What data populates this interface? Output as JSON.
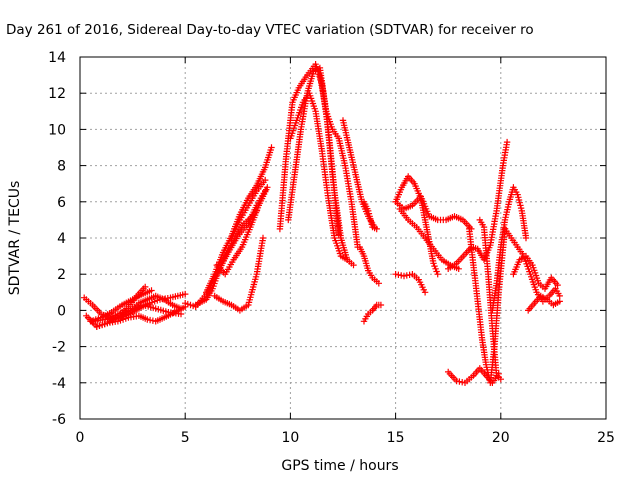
{
  "chart_data": {
    "type": "scatter",
    "title": "Day 261 of 2016, Sidereal Day-to-day VTEC variation (SDTVAR) for receiver ro",
    "xlabel": "GPS time / hours",
    "ylabel": "SDTVAR / TECUs",
    "xlim": [
      0,
      25
    ],
    "ylim": [
      -6,
      14
    ],
    "x_ticks": [
      "0",
      "5",
      "10",
      "15",
      "20",
      "25"
    ],
    "y_ticks": [
      "14",
      "12",
      "10",
      "8",
      "6",
      "4",
      "2",
      "0",
      "-2",
      "-4",
      "-6"
    ],
    "grid": true,
    "marker": "plus",
    "color": "#ff0000",
    "tracks": [
      {
        "x": [
          0.2,
          0.6,
          1.0,
          1.6,
          2.2,
          2.8,
          3.3,
          3.8,
          4.3,
          5.0
        ],
        "y": [
          0.7,
          0.3,
          -0.2,
          -0.5,
          -0.3,
          0.1,
          0.4,
          0.6,
          0.7,
          0.9
        ]
      },
      {
        "x": [
          0.3,
          0.8,
          1.3,
          1.8,
          2.3,
          2.7,
          3.1
        ],
        "y": [
          -0.3,
          -0.9,
          -0.7,
          -0.3,
          0.2,
          0.8,
          1.3
        ]
      },
      {
        "x": [
          0.5,
          1.0,
          1.5,
          2.0,
          2.5,
          3.0,
          3.4
        ],
        "y": [
          -0.6,
          -0.4,
          -0.1,
          0.3,
          0.6,
          0.9,
          1.1
        ]
      },
      {
        "x": [
          0.8,
          1.3,
          1.8,
          2.3,
          2.8,
          3.2,
          3.6,
          4.0,
          4.5,
          5.0
        ],
        "y": [
          -0.9,
          -0.7,
          -0.6,
          -0.4,
          -0.3,
          -0.5,
          -0.6,
          -0.4,
          -0.1,
          0.2
        ]
      },
      {
        "x": [
          0.6,
          1.2,
          1.8,
          2.4,
          3.0,
          3.6,
          4.2,
          4.8
        ],
        "y": [
          -0.6,
          -0.5,
          -0.2,
          0.0,
          0.3,
          0.1,
          -0.1,
          -0.2
        ]
      },
      {
        "x": [
          1.6,
          2.0,
          2.4,
          2.8,
          3.2,
          3.6,
          4.0,
          4.4,
          4.8
        ],
        "y": [
          -0.5,
          -0.3,
          0.0,
          0.4,
          0.6,
          0.8,
          0.6,
          0.3,
          0.1
        ]
      },
      {
        "x": [
          5.0,
          5.5,
          6.0,
          6.5,
          7.0,
          7.5,
          8.0,
          8.4,
          8.8
        ],
        "y": [
          0.4,
          0.2,
          0.9,
          2.0,
          3.1,
          4.1,
          4.8,
          5.8,
          6.6
        ]
      },
      {
        "x": [
          5.5,
          6.0,
          6.3,
          6.6,
          7.0,
          7.4,
          7.8,
          8.1,
          8.4
        ],
        "y": [
          0.3,
          0.6,
          1.2,
          2.2,
          3.3,
          4.1,
          4.8,
          5.1,
          5.5
        ]
      },
      {
        "x": [
          6.0,
          6.4,
          6.8,
          7.2,
          7.6,
          8.0,
          8.4,
          8.8,
          9.1
        ],
        "y": [
          1.0,
          2.0,
          3.2,
          4.1,
          5.3,
          6.2,
          6.9,
          7.9,
          9.0
        ]
      },
      {
        "x": [
          6.4,
          6.8,
          7.2,
          7.6,
          8.0,
          8.4,
          8.7
        ],
        "y": [
          0.8,
          0.5,
          0.3,
          0.0,
          0.3,
          2.0,
          4.0
        ]
      },
      {
        "x": [
          6.5,
          6.9,
          7.3,
          7.7,
          8.1,
          8.5,
          8.9
        ],
        "y": [
          2.5,
          2.0,
          2.8,
          3.5,
          4.6,
          5.8,
          6.8
        ]
      },
      {
        "x": [
          7.2,
          7.6,
          8.0,
          8.4,
          8.8
        ],
        "y": [
          4.0,
          5.0,
          5.8,
          6.6,
          7.2
        ]
      },
      {
        "x": [
          9.5,
          9.8,
          10.1,
          10.4,
          10.8,
          11.2,
          11.5,
          11.8,
          12.1,
          12.4,
          12.7
        ],
        "y": [
          4.5,
          8.5,
          11.5,
          12.3,
          13.0,
          13.6,
          12.5,
          10.0,
          6.5,
          4.0,
          2.8
        ]
      },
      {
        "x": [
          9.9,
          10.2,
          10.5,
          10.8,
          11.1,
          11.4,
          11.7,
          12.0,
          12.3
        ],
        "y": [
          5.0,
          7.5,
          10.0,
          12.0,
          13.2,
          13.4,
          11.0,
          7.5,
          4.2
        ]
      },
      {
        "x": [
          10.0,
          10.3,
          10.6,
          10.9,
          11.2,
          11.5,
          11.8,
          12.1,
          12.4,
          12.7,
          13.0
        ],
        "y": [
          9.5,
          10.5,
          11.5,
          12.0,
          11.0,
          8.8,
          6.2,
          4.0,
          3.0,
          2.8,
          2.5
        ]
      },
      {
        "x": [
          11.4,
          11.7,
          12.0,
          12.3,
          12.6,
          12.9,
          13.2
        ],
        "y": [
          13.0,
          11.0,
          10.0,
          9.5,
          8.0,
          6.0,
          3.5
        ]
      },
      {
        "x": [
          12.5,
          12.8,
          13.1,
          13.4,
          13.7,
          14.0
        ],
        "y": [
          10.5,
          9.0,
          7.5,
          6.0,
          5.2,
          4.6
        ]
      },
      {
        "x": [
          13.5,
          13.7,
          13.9,
          14.1
        ],
        "y": [
          6.0,
          5.5,
          4.6,
          4.5
        ]
      },
      {
        "x": [
          13.3,
          13.5,
          13.7,
          13.9,
          14.2
        ],
        "y": [
          3.5,
          3.0,
          2.2,
          1.8,
          1.5
        ]
      },
      {
        "x": [
          13.5,
          13.7,
          13.9,
          14.1,
          14.3
        ],
        "y": [
          -0.6,
          -0.2,
          0.0,
          0.3,
          0.3
        ]
      },
      {
        "x": [
          15.0,
          15.3,
          15.6,
          15.9,
          16.2,
          16.4,
          16.6,
          16.8,
          17.0
        ],
        "y": [
          6.0,
          6.8,
          7.4,
          7.0,
          6.2,
          5.0,
          3.8,
          2.6,
          2.0
        ]
      },
      {
        "x": [
          15.0,
          15.4,
          15.8,
          16.2,
          16.6,
          17.0,
          17.4,
          17.8,
          18.2,
          18.6
        ],
        "y": [
          6.0,
          5.6,
          5.8,
          6.3,
          5.2,
          5.0,
          5.0,
          5.2,
          5.0,
          4.5
        ]
      },
      {
        "x": [
          15.2,
          15.6,
          16.0,
          16.4,
          16.8,
          17.2,
          17.6,
          18.0
        ],
        "y": [
          5.6,
          5.0,
          4.6,
          4.0,
          3.4,
          2.8,
          2.5,
          2.3
        ]
      },
      {
        "x": [
          15.0,
          15.4,
          15.8,
          16.1,
          16.4
        ],
        "y": [
          2.0,
          1.9,
          2.0,
          1.7,
          1.0
        ]
      },
      {
        "x": [
          17.5,
          17.9,
          18.3,
          18.7,
          19.0,
          19.3,
          19.6,
          19.9
        ],
        "y": [
          -3.4,
          -3.9,
          -4.0,
          -3.6,
          -3.2,
          -3.6,
          -4.0,
          -3.5
        ]
      },
      {
        "x": [
          17.5,
          17.9,
          18.3,
          18.6,
          18.9,
          19.2,
          19.5,
          19.8,
          20.1,
          20.3
        ],
        "y": [
          2.3,
          2.6,
          3.1,
          3.5,
          3.4,
          2.8,
          3.6,
          5.5,
          8.0,
          9.3
        ]
      },
      {
        "x": [
          18.5,
          18.7,
          18.9,
          19.1,
          19.3,
          19.5,
          19.7,
          19.9,
          20.2
        ],
        "y": [
          4.5,
          2.5,
          0.5,
          -1.5,
          -3.0,
          -4.0,
          -2.0,
          1.0,
          4.5
        ]
      },
      {
        "x": [
          19.0,
          19.2,
          19.4,
          19.6,
          19.8,
          20.0
        ],
        "y": [
          5.0,
          4.6,
          2.0,
          -1.0,
          -3.6,
          -3.8
        ]
      },
      {
        "x": [
          19.6,
          19.8,
          20.0,
          20.2,
          20.4,
          20.6,
          20.8,
          21.0,
          21.2
        ],
        "y": [
          0.0,
          1.5,
          3.5,
          5.0,
          6.0,
          6.8,
          6.4,
          5.5,
          4.0
        ]
      },
      {
        "x": [
          20.2,
          20.5,
          20.8,
          21.1,
          21.4,
          21.7,
          22.0,
          22.3,
          22.6,
          22.8
        ],
        "y": [
          4.5,
          4.0,
          3.5,
          3.0,
          2.0,
          1.0,
          0.5,
          0.8,
          1.2,
          0.8
        ]
      },
      {
        "x": [
          20.6,
          20.9,
          21.2,
          21.5,
          21.8,
          22.1,
          22.4,
          22.7
        ],
        "y": [
          2.0,
          2.8,
          3.0,
          2.5,
          1.5,
          1.2,
          1.8,
          1.4
        ]
      },
      {
        "x": [
          21.3,
          21.6,
          21.9,
          22.2,
          22.5,
          22.8
        ],
        "y": [
          0.0,
          0.4,
          0.8,
          0.6,
          0.3,
          0.5
        ]
      }
    ]
  }
}
